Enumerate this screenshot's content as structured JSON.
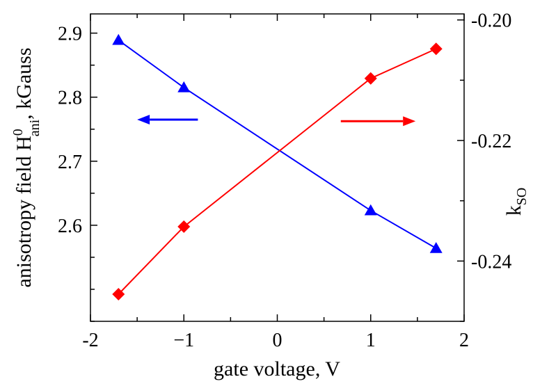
{
  "chart_data": {
    "type": "line",
    "title": "",
    "xlabel": "gate voltage, V",
    "ylabel_left": {
      "main": "anisotropy field H",
      "sup": "0",
      "sub": "ani",
      "suffix": ", kGauss"
    },
    "ylabel_right": {
      "main": "k",
      "sub": "SO"
    },
    "xlim": [
      -2,
      2
    ],
    "ylim_left": [
      2.45,
      2.93
    ],
    "ylim_right": [
      -0.25,
      -0.199
    ],
    "x_ticks": [
      -2,
      -1,
      0,
      1,
      2
    ],
    "x_tick_labels": [
      "-2",
      "−1",
      "0",
      "1",
      "2"
    ],
    "y_left_ticks": [
      2.6,
      2.7,
      2.8,
      2.9
    ],
    "y_left_tick_labels": [
      "2.6",
      "2.7",
      "2.8",
      "2.9"
    ],
    "y_right_ticks": [
      -0.24,
      -0.22,
      -0.2
    ],
    "y_right_tick_labels": [
      "-0.24",
      "-0.22",
      "-0.20"
    ],
    "grid": false,
    "series": [
      {
        "name": "anisotropy field",
        "axis": "left",
        "color": "#0000ff",
        "marker": "triangle",
        "x": [
          -1.7,
          -1.0,
          1.0,
          1.7
        ],
        "y": [
          2.889,
          2.815,
          2.623,
          2.564
        ]
      },
      {
        "name": "kSO",
        "axis": "right",
        "color": "#ff0000",
        "marker": "diamond",
        "x": [
          -1.7,
          -1.0,
          1.0,
          1.7
        ],
        "y": [
          -0.2455,
          -0.2343,
          -0.2097,
          -0.2048
        ]
      }
    ],
    "annotations": [
      {
        "type": "arrow",
        "direction": "left",
        "color": "#0000ff",
        "axis": "left",
        "x_from": -0.85,
        "x_to": -1.5,
        "y": 2.765
      },
      {
        "type": "arrow",
        "direction": "right",
        "color": "#ff0000",
        "axis": "right",
        "x_from": 0.68,
        "x_to": 1.48,
        "y": -0.2168
      }
    ]
  }
}
